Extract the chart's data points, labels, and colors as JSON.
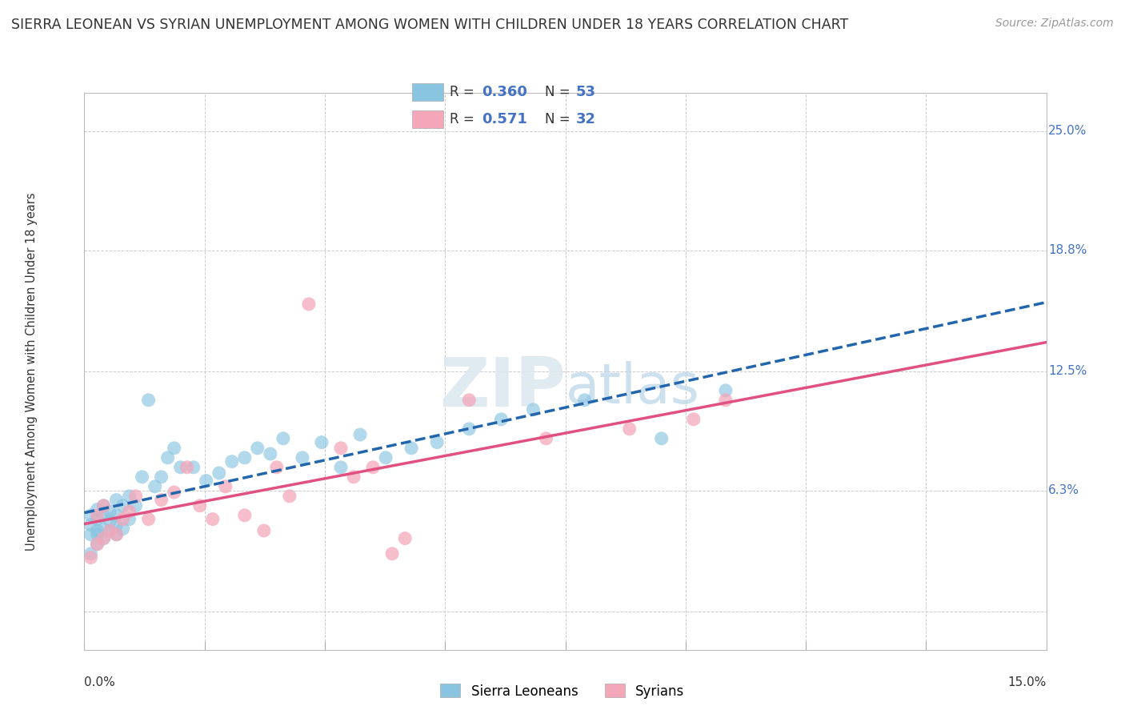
{
  "title": "SIERRA LEONEAN VS SYRIAN UNEMPLOYMENT AMONG WOMEN WITH CHILDREN UNDER 18 YEARS CORRELATION CHART",
  "source": "Source: ZipAtlas.com",
  "ylabel": "Unemployment Among Women with Children Under 18 years",
  "xlim": [
    0.0,
    0.15
  ],
  "ylim": [
    -0.02,
    0.27
  ],
  "ytick_positions": [
    0.0,
    0.063,
    0.125,
    0.188,
    0.25
  ],
  "ytick_labels": [
    "",
    "6.3%",
    "12.5%",
    "18.8%",
    "25.0%"
  ],
  "sierra_leone_color": "#89c4e1",
  "syrian_color": "#f4a7b9",
  "trend_sierra_color": "#2166ac",
  "trend_syrian_color": "#e05080",
  "sierra_R": 0.36,
  "sierra_N": 53,
  "syrian_R": 0.571,
  "syrian_N": 32,
  "watermark_zip": "ZIP",
  "watermark_atlas": "atlas",
  "background_color": "#ffffff",
  "grid_color": "#cccccc",
  "sierra_x": [
    0.001,
    0.001,
    0.001,
    0.001,
    0.002,
    0.002,
    0.002,
    0.002,
    0.002,
    0.003,
    0.003,
    0.003,
    0.003,
    0.004,
    0.004,
    0.004,
    0.005,
    0.005,
    0.005,
    0.005,
    0.006,
    0.006,
    0.007,
    0.007,
    0.008,
    0.009,
    0.01,
    0.011,
    0.012,
    0.013,
    0.014,
    0.015,
    0.017,
    0.019,
    0.021,
    0.023,
    0.025,
    0.027,
    0.029,
    0.031,
    0.034,
    0.037,
    0.04,
    0.043,
    0.047,
    0.051,
    0.055,
    0.06,
    0.065,
    0.07,
    0.078,
    0.09,
    0.1
  ],
  "sierra_y": [
    0.03,
    0.04,
    0.045,
    0.05,
    0.035,
    0.04,
    0.042,
    0.048,
    0.053,
    0.038,
    0.043,
    0.05,
    0.055,
    0.042,
    0.047,
    0.052,
    0.04,
    0.045,
    0.05,
    0.058,
    0.043,
    0.055,
    0.048,
    0.06,
    0.055,
    0.07,
    0.11,
    0.065,
    0.07,
    0.08,
    0.085,
    0.075,
    0.075,
    0.068,
    0.072,
    0.078,
    0.08,
    0.085,
    0.082,
    0.09,
    0.08,
    0.088,
    0.075,
    0.092,
    0.08,
    0.085,
    0.088,
    0.095,
    0.1,
    0.105,
    0.11,
    0.09,
    0.115
  ],
  "syrian_x": [
    0.001,
    0.002,
    0.002,
    0.003,
    0.003,
    0.004,
    0.005,
    0.006,
    0.007,
    0.008,
    0.01,
    0.012,
    0.014,
    0.016,
    0.018,
    0.02,
    0.022,
    0.025,
    0.028,
    0.03,
    0.032,
    0.035,
    0.04,
    0.042,
    0.045,
    0.048,
    0.05,
    0.06,
    0.072,
    0.085,
    0.095,
    0.1
  ],
  "syrian_y": [
    0.028,
    0.035,
    0.05,
    0.038,
    0.055,
    0.042,
    0.04,
    0.048,
    0.052,
    0.06,
    0.048,
    0.058,
    0.062,
    0.075,
    0.055,
    0.048,
    0.065,
    0.05,
    0.042,
    0.075,
    0.06,
    0.16,
    0.085,
    0.07,
    0.075,
    0.03,
    0.038,
    0.11,
    0.09,
    0.095,
    0.1,
    0.11
  ]
}
